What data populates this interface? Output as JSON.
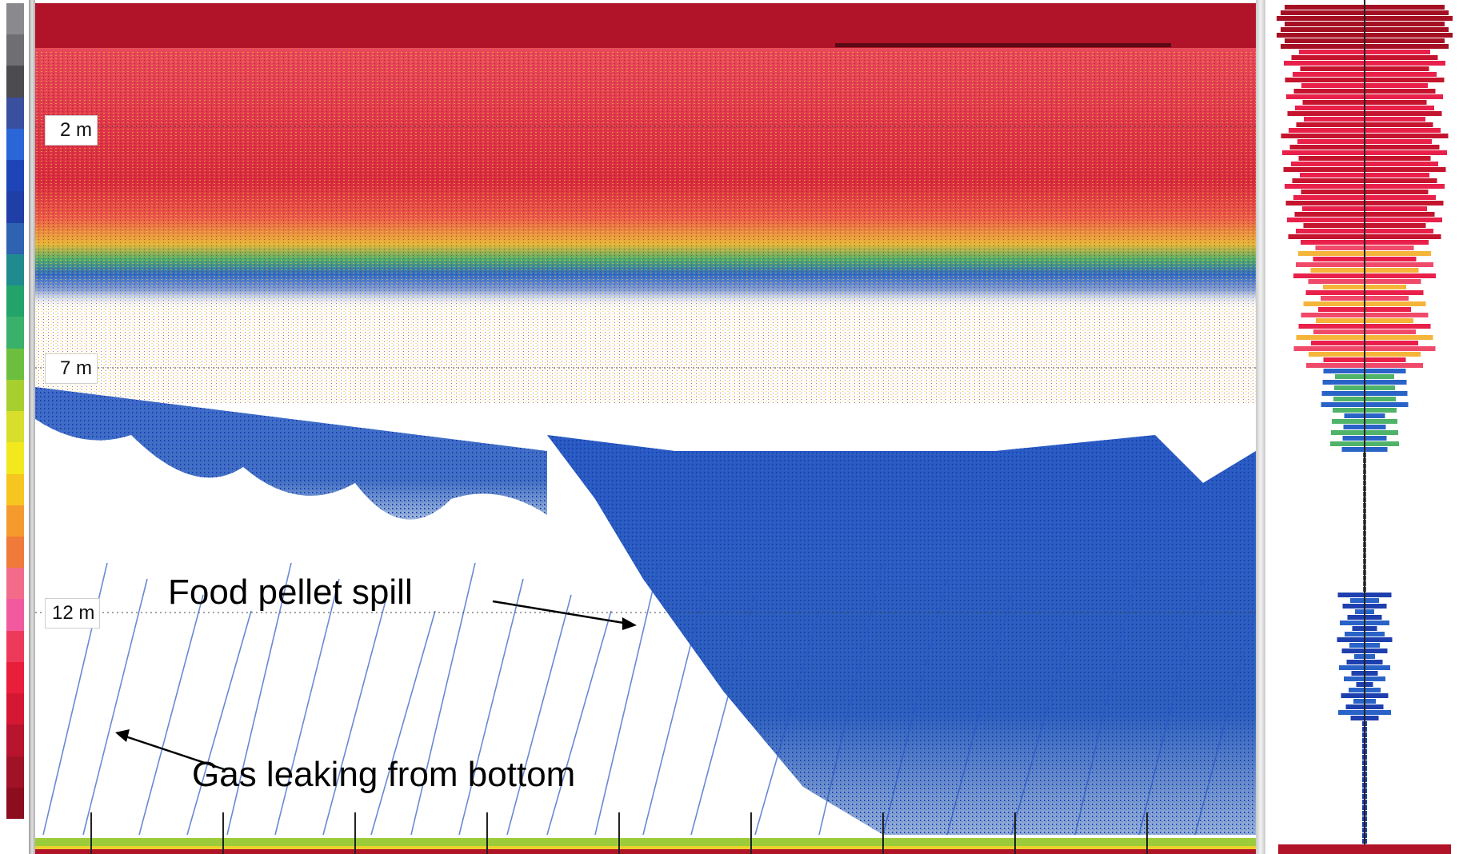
{
  "colorbar": {
    "colors": [
      "#8a8a8e",
      "#6f6f73",
      "#4b4b50",
      "#3a4f9e",
      "#2a66d8",
      "#1e45b8",
      "#1f3fa6",
      "#2f62b0",
      "#1f8b8f",
      "#21a36a",
      "#3ab16a",
      "#6cbf3e",
      "#a7cf2e",
      "#d8de2c",
      "#f2e81e",
      "#f6c51f",
      "#f59b2e",
      "#f07a3a",
      "#f26c8a",
      "#f25aa0",
      "#ee3a5a",
      "#e81e3a",
      "#d41834",
      "#b8142d",
      "#a01225",
      "#8c0d1e"
    ]
  },
  "echogram": {
    "depth_markers": [
      {
        "label": "2 m"
      },
      {
        "label": "7 m"
      },
      {
        "label": "12 m"
      }
    ],
    "annotations": {
      "food_pellet": "Food pellet spill",
      "gas_leak": "Gas leaking from bottom"
    }
  }
}
